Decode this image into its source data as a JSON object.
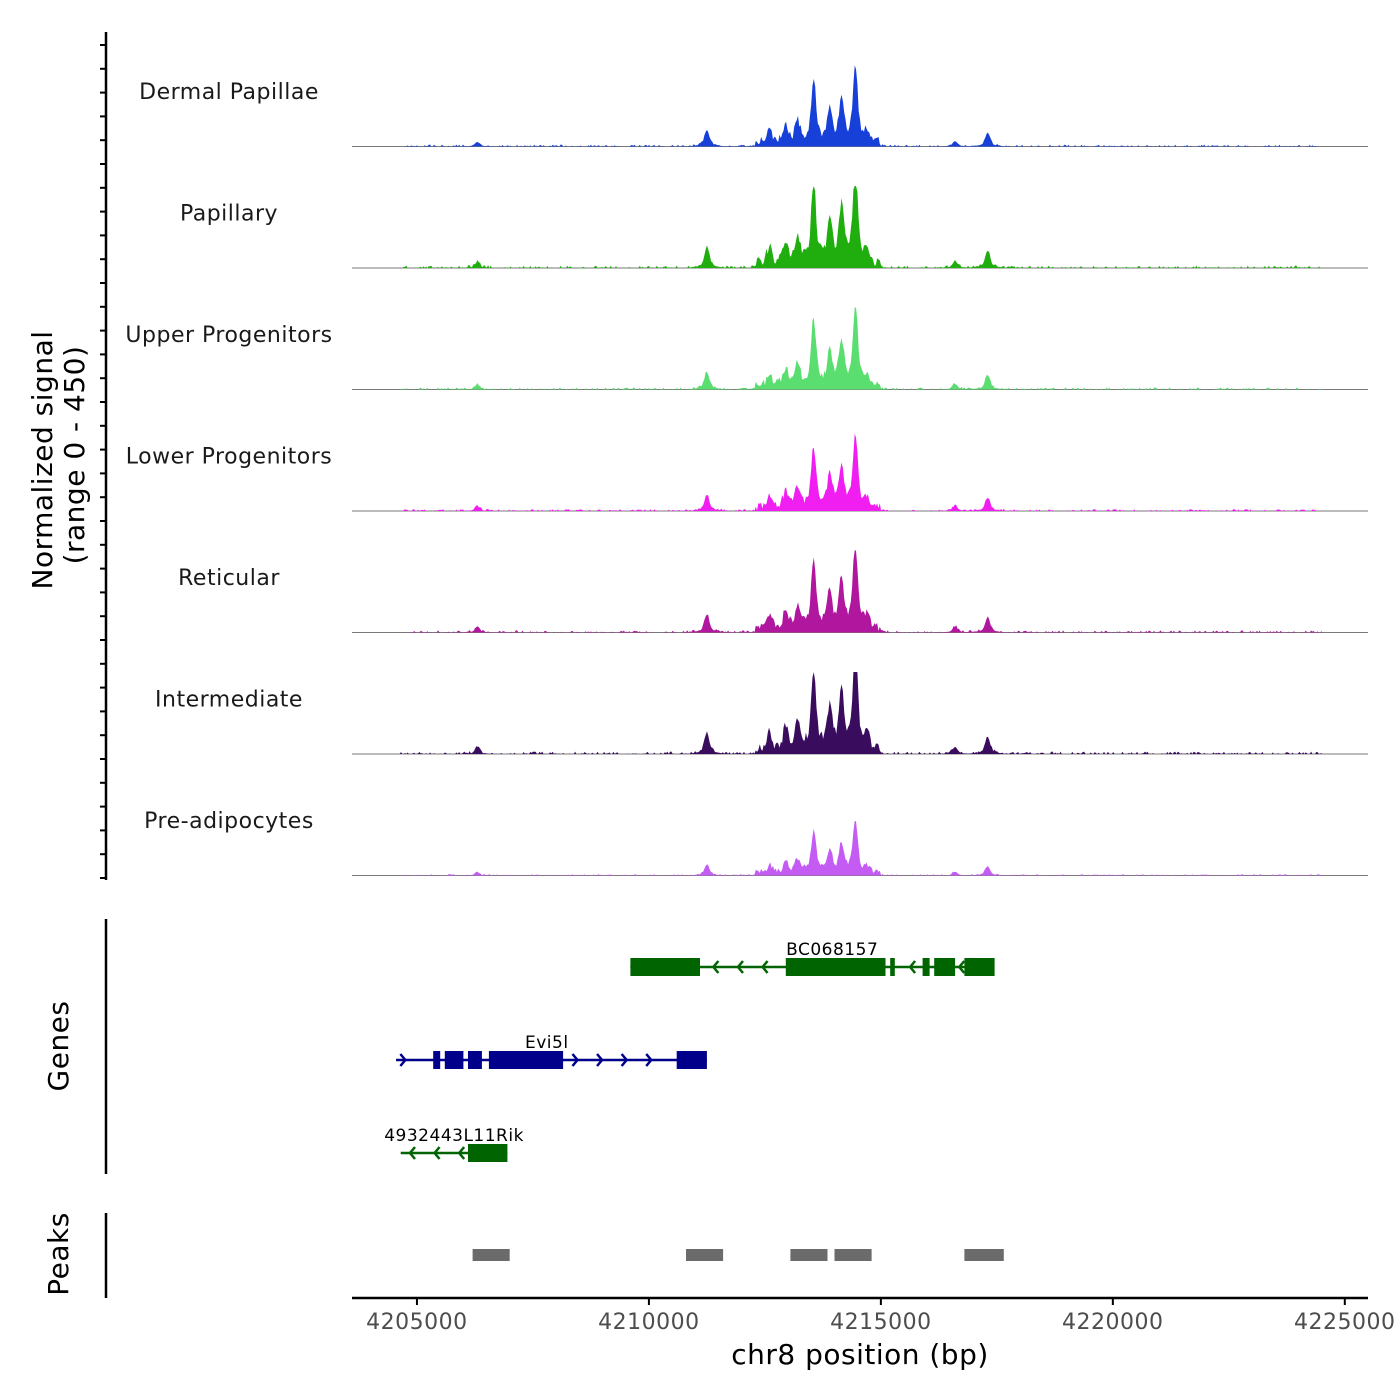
{
  "chart_data": {
    "type": "area",
    "xlabel": "chr8 position (bp)",
    "ylabel_line1": "Normalized signal",
    "ylabel_line2": "(range 0 - 450)",
    "ylim": [
      0,
      450
    ],
    "xlim": [
      4203600,
      4225500
    ],
    "x_ticks": [
      4205000,
      4210000,
      4215000,
      4220000,
      4225000
    ],
    "x_tick_labels": [
      "4205000",
      "4210000",
      "4215000",
      "4220000",
      "4225000"
    ],
    "series": [
      {
        "name": "Dermal Papillae",
        "color": "#1640d8",
        "scale": 0.78
      },
      {
        "name": "Papillary",
        "color": "#1fae0e",
        "scale": 1.0
      },
      {
        "name": "Upper Progenitors",
        "color": "#5ade70",
        "scale": 0.82
      },
      {
        "name": "Lower Progenitors",
        "color": "#f01ef0",
        "scale": 0.75
      },
      {
        "name": "Reticular",
        "color": "#b0169e",
        "scale": 0.85
      },
      {
        "name": "Intermediate",
        "color": "#3a0c5e",
        "scale": 1.0
      },
      {
        "name": "Pre-adipocytes",
        "color": "#c45cf4",
        "scale": 0.52
      }
    ],
    "peaks_centers": [
      {
        "x": 4211250,
        "h": 0.22
      },
      {
        "x": 4212600,
        "h": 0.16
      },
      {
        "x": 4212950,
        "h": 0.22
      },
      {
        "x": 4213200,
        "h": 0.27
      },
      {
        "x": 4213550,
        "h": 0.82
      },
      {
        "x": 4213900,
        "h": 0.44
      },
      {
        "x": 4214150,
        "h": 0.56
      },
      {
        "x": 4214450,
        "h": 1.0
      },
      {
        "x": 4214700,
        "h": 0.12
      },
      {
        "x": 4217300,
        "h": 0.18
      },
      {
        "x": 4216600,
        "h": 0.07
      },
      {
        "x": 4206300,
        "h": 0.06
      }
    ],
    "genes_track_label": "Genes",
    "peaks_track_label": "Peaks",
    "genes": [
      {
        "name": "BC068157",
        "start": 4209600,
        "end": 4217450,
        "strand": "-",
        "color": "#006400",
        "row": 0,
        "exons": [
          [
            4209600,
            4211100
          ],
          [
            4212950,
            4215100
          ],
          [
            4215200,
            4215300
          ],
          [
            4215900,
            4216050
          ],
          [
            4216150,
            4216600
          ],
          [
            4216800,
            4217450
          ]
        ]
      },
      {
        "name": "Evi5l",
        "start": 4204550,
        "end": 4211250,
        "strand": "+",
        "color": "#00008b",
        "row": 1,
        "exons": [
          [
            4205350,
            4205500
          ],
          [
            4205600,
            4206000
          ],
          [
            4206100,
            4206400
          ],
          [
            4206550,
            4208150
          ],
          [
            4210600,
            4211250
          ]
        ]
      },
      {
        "name": "4932443L11Rik",
        "start": 4204650,
        "end": 4206950,
        "strand": "-",
        "color": "#006400",
        "row": 2,
        "exons": [
          [
            4206100,
            4206950
          ]
        ]
      }
    ],
    "peaks": [
      [
        4206200,
        4207000
      ],
      [
        4210800,
        4211600
      ],
      [
        4213050,
        4213850
      ],
      [
        4214000,
        4214800
      ],
      [
        4216800,
        4217650
      ]
    ]
  }
}
